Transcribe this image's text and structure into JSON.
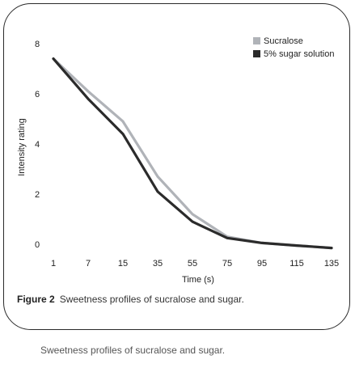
{
  "figure": {
    "label": "Figure 2",
    "caption": "Sweetness profiles of sucralose and sugar."
  },
  "page_caption": "Sweetness profiles of sucralose and sugar.",
  "chart_data": {
    "type": "line",
    "title": "",
    "xlabel": "Time (s)",
    "ylabel": "Intensity rating",
    "x": [
      "1",
      "7",
      "15",
      "35",
      "55",
      "75",
      "95",
      "115",
      "135"
    ],
    "ylim": [
      0,
      8
    ],
    "yticks": [
      0,
      2,
      4,
      6,
      8
    ],
    "grid": false,
    "legend_position": "top-right",
    "series": [
      {
        "name": "Sucralose",
        "color": "#b0b3b8",
        "values": [
          7.4,
          6.1,
          4.9,
          2.7,
          1.2,
          0.3,
          0.05,
          -0.05,
          -0.15
        ]
      },
      {
        "name": "5% sugar solution",
        "color": "#2b2b2b",
        "values": [
          7.4,
          5.8,
          4.4,
          2.1,
          0.9,
          0.25,
          0.05,
          -0.05,
          -0.15
        ]
      }
    ]
  }
}
